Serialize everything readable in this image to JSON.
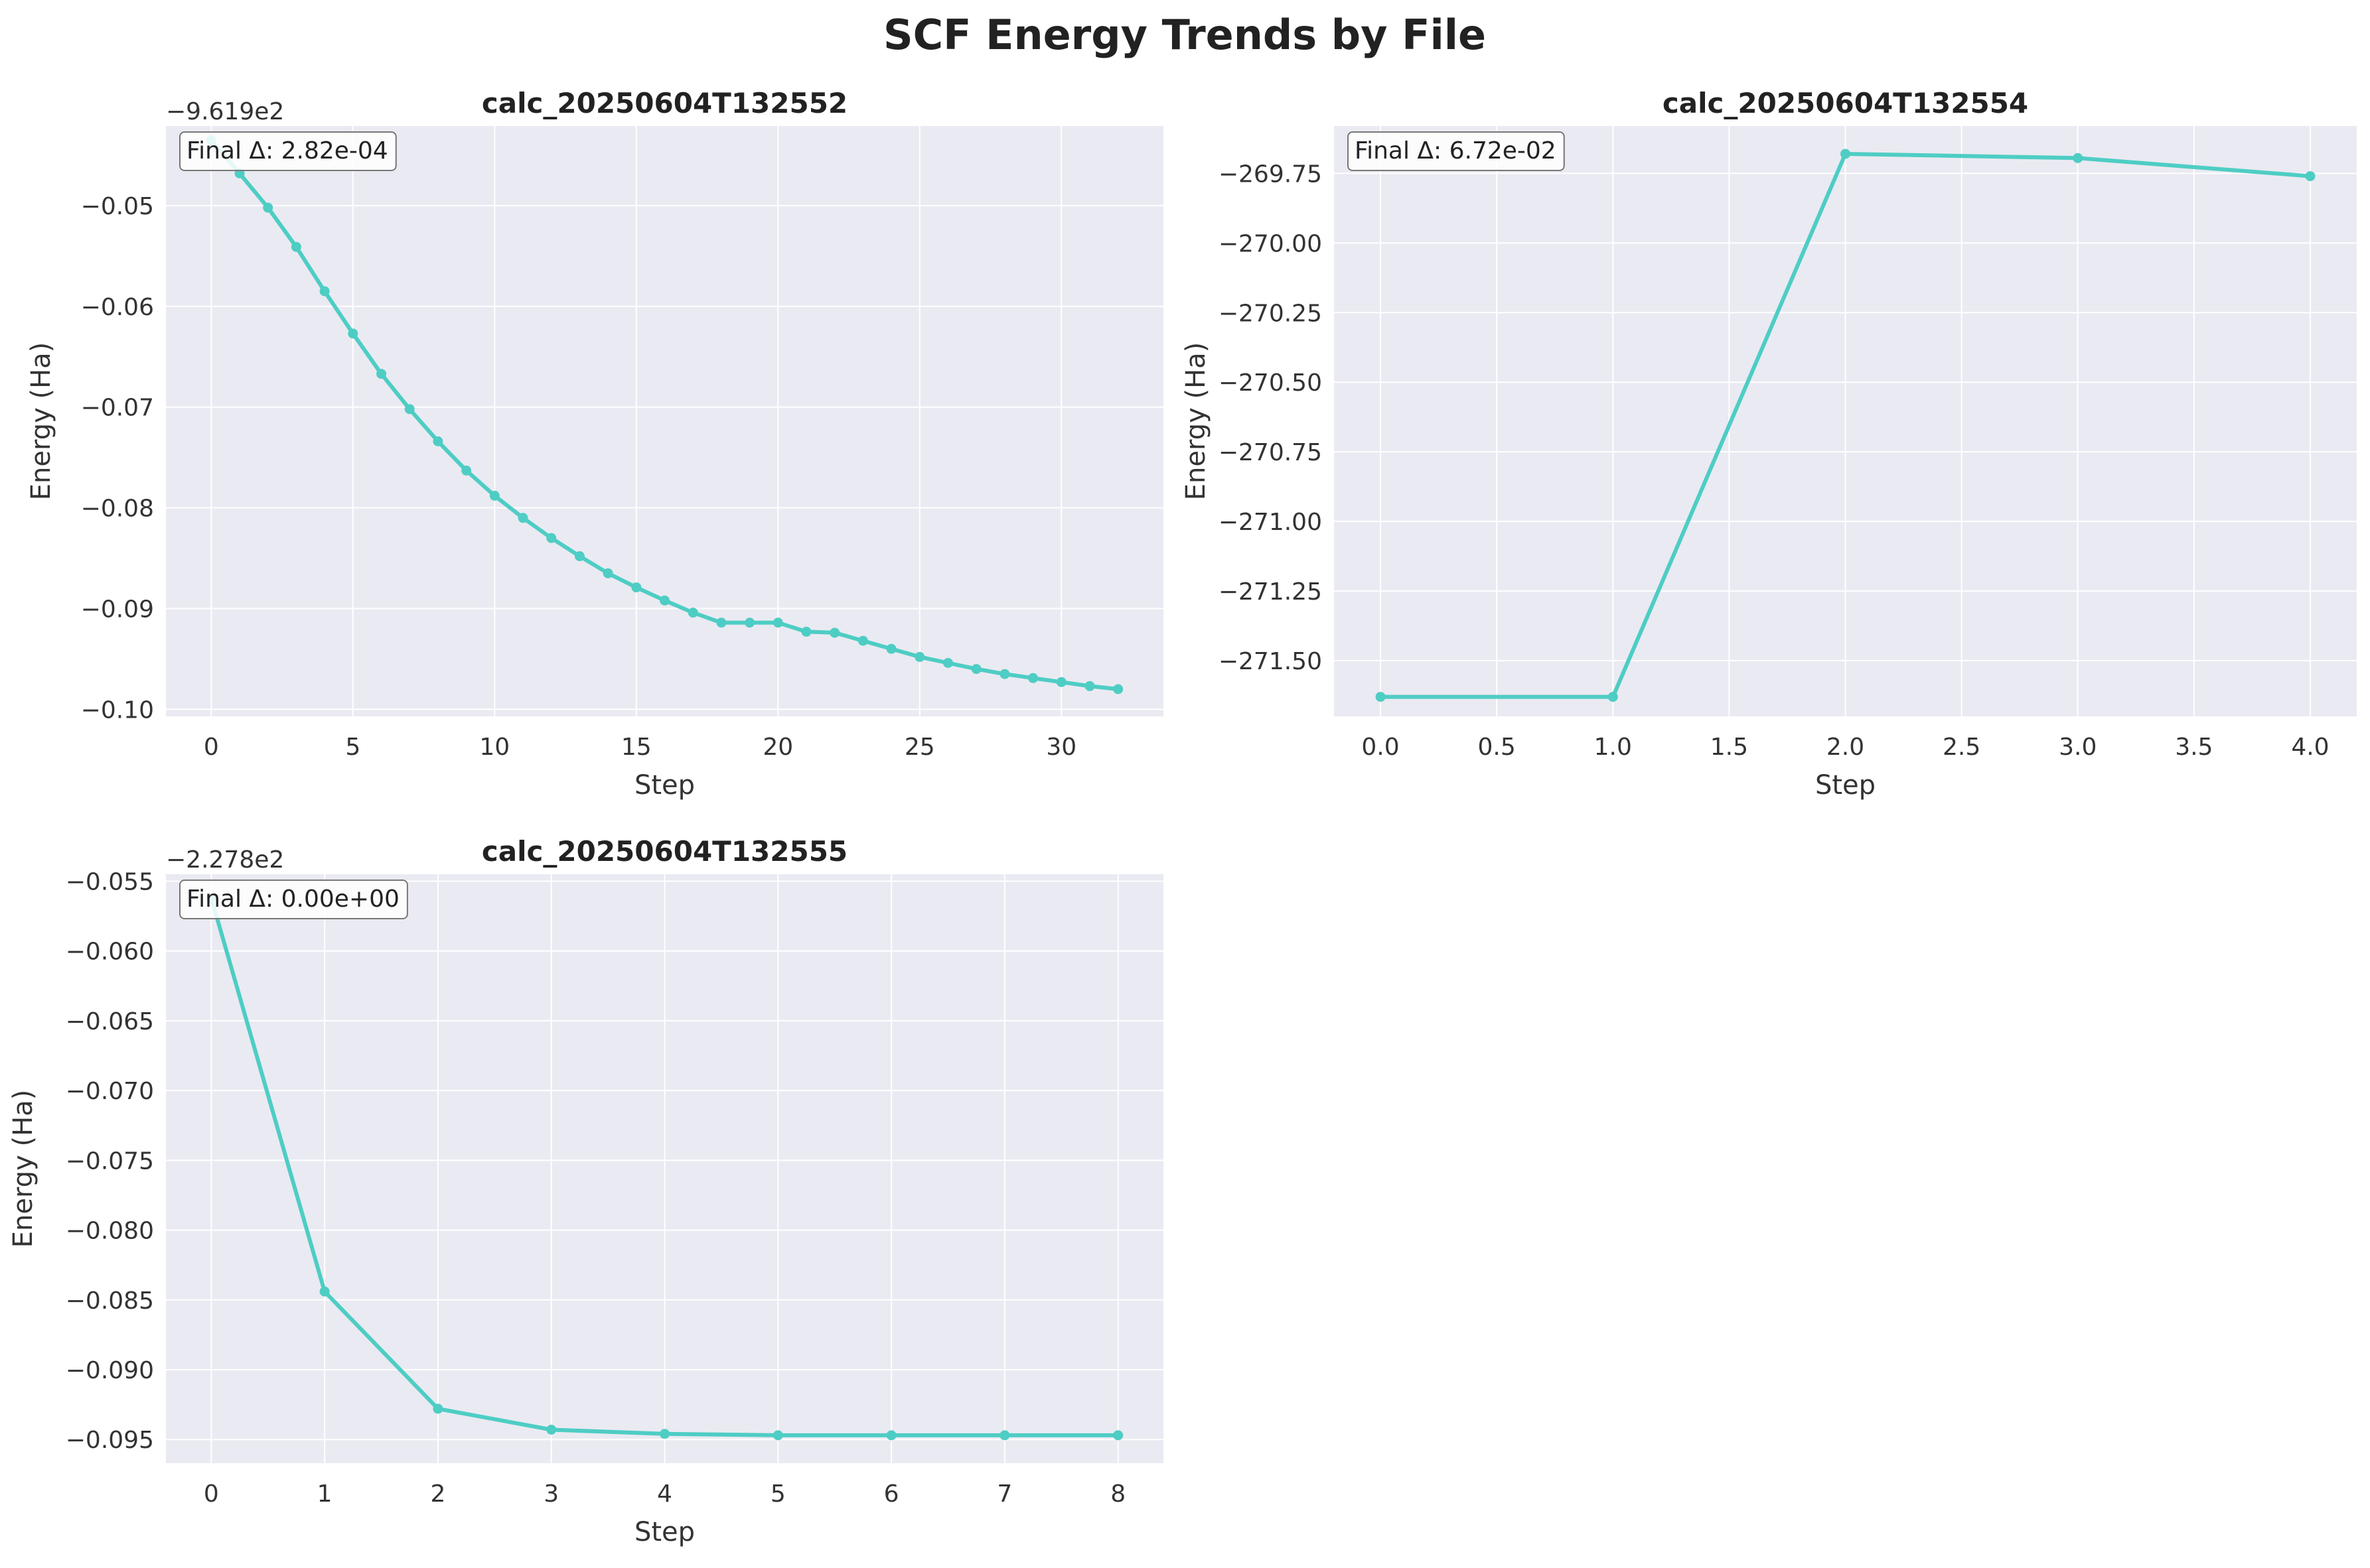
{
  "figure": {
    "title": "SCF Energy Trends by File"
  },
  "colors": {
    "line": "#4ECDC4",
    "panel_bg": "#EAEAF2",
    "grid": "#FFFFFF",
    "text": "#333333"
  },
  "chart_data": [
    {
      "type": "line",
      "title": "calc_20250604T132552",
      "xlabel": "Step",
      "ylabel": "Energy (Ha)",
      "offset_label": "−9.619e2",
      "annotation": "Final Δ: 2.82e-04",
      "xlim": [
        -1.6,
        33.6
      ],
      "ylim": [
        -0.1007,
        -0.0421
      ],
      "xticks": [
        0,
        5,
        10,
        15,
        20,
        25,
        30
      ],
      "xtick_labels": [
        "0",
        "5",
        "10",
        "15",
        "20",
        "25",
        "30"
      ],
      "yticks": [
        -0.1,
        -0.09,
        -0.08,
        -0.07,
        -0.06,
        -0.05
      ],
      "ytick_labels": [
        "−0.10",
        "−0.09",
        "−0.08",
        "−0.07",
        "−0.06",
        "−0.05"
      ],
      "grid": true,
      "x": [
        0,
        1,
        2,
        3,
        4,
        5,
        6,
        7,
        8,
        9,
        10,
        11,
        12,
        13,
        14,
        15,
        16,
        17,
        18,
        19,
        20,
        21,
        22,
        23,
        24,
        25,
        26,
        27,
        28,
        29,
        30,
        31,
        32
      ],
      "y": [
        -0.0435,
        -0.0468,
        -0.0502,
        -0.0541,
        -0.0585,
        -0.0627,
        -0.0667,
        -0.0702,
        -0.0734,
        -0.0763,
        -0.0788,
        -0.081,
        -0.083,
        -0.0848,
        -0.0865,
        -0.0879,
        -0.0892,
        -0.0904,
        -0.0914,
        -0.0914,
        -0.0914,
        -0.0923,
        -0.0924,
        -0.0932,
        -0.094,
        -0.0948,
        -0.0954,
        -0.096,
        -0.0965,
        -0.0969,
        -0.0973,
        -0.0977,
        -0.098
      ]
    },
    {
      "type": "line",
      "title": "calc_20250604T132554",
      "xlabel": "Step",
      "ylabel": "Energy (Ha)",
      "offset_label": "",
      "annotation": "Final Δ: 6.72e-02",
      "xlim": [
        -0.2,
        4.2
      ],
      "ylim": [
        -271.7,
        -269.58
      ],
      "xticks": [
        0.0,
        0.5,
        1.0,
        1.5,
        2.0,
        2.5,
        3.0,
        3.5,
        4.0
      ],
      "xtick_labels": [
        "0.0",
        "0.5",
        "1.0",
        "1.5",
        "2.0",
        "2.5",
        "3.0",
        "3.5",
        "4.0"
      ],
      "yticks": [
        -271.5,
        -271.25,
        -271.0,
        -270.75,
        -270.5,
        -270.25,
        -270.0,
        -269.75
      ],
      "ytick_labels": [
        "−271.50",
        "−271.25",
        "−271.00",
        "−270.75",
        "−270.50",
        "−270.25",
        "−270.00",
        "−269.75"
      ],
      "grid": true,
      "x": [
        0,
        1,
        2,
        3,
        4
      ],
      "y": [
        -271.63,
        -271.63,
        -269.68,
        -269.695,
        -269.76
      ]
    },
    {
      "type": "line",
      "title": "calc_20250604T132555",
      "xlabel": "Step",
      "ylabel": "Energy (Ha)",
      "offset_label": "−2.278e2",
      "annotation": "Final Δ: 0.00e+00",
      "xlim": [
        -0.4,
        8.4
      ],
      "ylim": [
        -0.0967,
        -0.0545
      ],
      "xticks": [
        0,
        1,
        2,
        3,
        4,
        5,
        6,
        7,
        8
      ],
      "xtick_labels": [
        "0",
        "1",
        "2",
        "3",
        "4",
        "5",
        "6",
        "7",
        "8"
      ],
      "yticks": [
        -0.095,
        -0.09,
        -0.085,
        -0.08,
        -0.075,
        -0.07,
        -0.065,
        -0.06,
        -0.055
      ],
      "ytick_labels": [
        "−0.095",
        "−0.090",
        "−0.085",
        "−0.080",
        "−0.075",
        "−0.070",
        "−0.065",
        "−0.060",
        "−0.055"
      ],
      "grid": true,
      "x": [
        0,
        1,
        2,
        3,
        4,
        5,
        6,
        7,
        8
      ],
      "y": [
        -0.0562,
        -0.0844,
        -0.0928,
        -0.0943,
        -0.0946,
        -0.0947,
        -0.0947,
        -0.0947,
        -0.0947
      ]
    }
  ]
}
